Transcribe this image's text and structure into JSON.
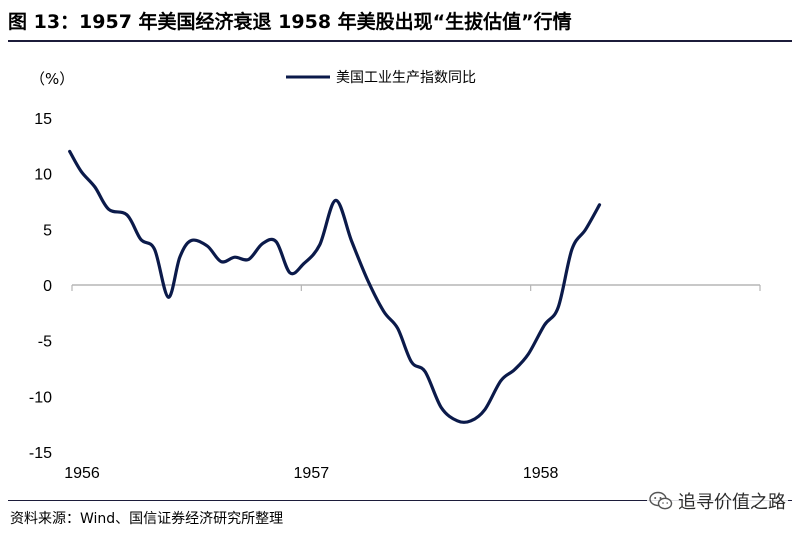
{
  "figure": {
    "title": "图 13：1957 年美国经济衰退 1958 年美股出现“生拔估值”行情",
    "source": "资料来源：Wind、国信证券经济研究所整理",
    "watermark": "追寻价值之路"
  },
  "chart_data": {
    "type": "line",
    "title": "",
    "ylabel": "（%）",
    "xlabel": "",
    "ylim": [
      -15,
      15
    ],
    "yticks": [
      15,
      10,
      5,
      0,
      -5,
      -10,
      -15
    ],
    "xlim": [
      1956.0,
      1959.0
    ],
    "xticks": [
      {
        "value": 1956.0,
        "label": "1956"
      },
      {
        "value": 1957.0,
        "label": "1957"
      },
      {
        "value": 1958.0,
        "label": "1958"
      }
    ],
    "grid": false,
    "legend": "top-center",
    "series": [
      {
        "name": "美国工业生产指数同比",
        "color": "#0b1a4a",
        "points": [
          [
            1955.99,
            12.0
          ],
          [
            1956.04,
            10.2
          ],
          [
            1956.1,
            8.8
          ],
          [
            1956.16,
            6.8
          ],
          [
            1956.24,
            6.3
          ],
          [
            1956.3,
            4.1
          ],
          [
            1956.36,
            3.2
          ],
          [
            1956.42,
            -1.1
          ],
          [
            1956.47,
            2.5
          ],
          [
            1956.52,
            4.0
          ],
          [
            1956.59,
            3.5
          ],
          [
            1956.65,
            2.1
          ],
          [
            1956.71,
            2.5
          ],
          [
            1956.77,
            2.3
          ],
          [
            1956.83,
            3.7
          ],
          [
            1956.89,
            3.9
          ],
          [
            1956.95,
            1.1
          ],
          [
            1957.01,
            1.9
          ],
          [
            1957.08,
            3.6
          ],
          [
            1957.15,
            7.6
          ],
          [
            1957.22,
            3.9
          ],
          [
            1957.29,
            0.4
          ],
          [
            1957.36,
            -2.4
          ],
          [
            1957.42,
            -3.9
          ],
          [
            1957.48,
            -6.9
          ],
          [
            1957.54,
            -7.8
          ],
          [
            1957.61,
            -11.0
          ],
          [
            1957.68,
            -12.2
          ],
          [
            1957.74,
            -12.2
          ],
          [
            1957.8,
            -11.2
          ],
          [
            1957.87,
            -8.6
          ],
          [
            1957.93,
            -7.6
          ],
          [
            1957.99,
            -6.2
          ],
          [
            1958.06,
            -3.6
          ],
          [
            1958.12,
            -2.0
          ],
          [
            1958.18,
            3.2
          ],
          [
            1958.24,
            5.0
          ],
          [
            1958.3,
            7.2
          ]
        ]
      }
    ]
  }
}
